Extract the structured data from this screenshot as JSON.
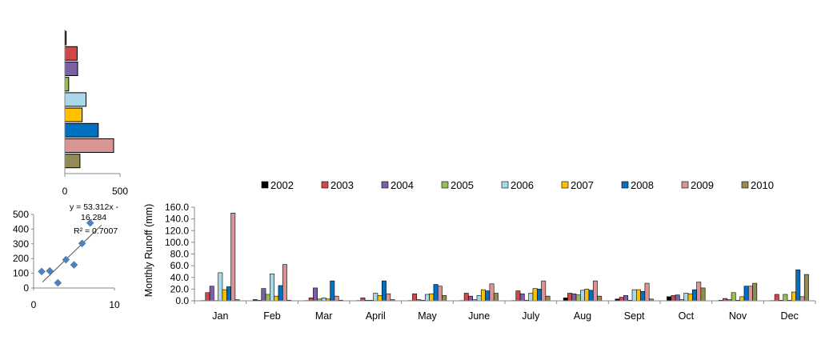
{
  "colors": {
    "2002": "#000000",
    "2003": "#d04848",
    "2004": "#7d5fa8",
    "2005": "#9bbb59",
    "2006": "#a9d8e8",
    "2007": "#ffc000",
    "2008": "#0070c0",
    "2009": "#d99594",
    "2010": "#948a54",
    "scatter_marker": "#4f81bd"
  },
  "chart_data": [
    {
      "type": "bar",
      "orientation": "horizontal",
      "categories": [
        "2002",
        "2003",
        "2004",
        "2005",
        "2006",
        "2007",
        "2008",
        "2009",
        "2010"
      ],
      "values": [
        12,
        112,
        116,
        35,
        192,
        157,
        303,
        442,
        137
      ],
      "xlim": [
        0,
        500
      ],
      "xticks": [
        "0",
        "500"
      ],
      "title": "",
      "xlabel": "",
      "ylabel": ""
    },
    {
      "type": "scatter",
      "x": [
        1,
        2,
        3,
        4,
        5,
        6,
        7
      ],
      "y": [
        112,
        116,
        35,
        192,
        157,
        303,
        442
      ],
      "xlim": [
        0,
        10
      ],
      "ylim": [
        0,
        500
      ],
      "xticks": [
        "0",
        "10"
      ],
      "yticks": [
        "0",
        "100",
        "200",
        "300",
        "400",
        "500"
      ],
      "trendline": true,
      "annotations": [
        "y = 53.312x -",
        "16.284",
        "R² = 0.7007"
      ],
      "title": "",
      "xlabel": "",
      "ylabel": ""
    },
    {
      "type": "bar",
      "title": "",
      "ylabel": "Monthly  Runoff (mm)",
      "xlabel": "",
      "ylim": [
        0,
        160
      ],
      "yticks": [
        "0.0",
        "20.0",
        "40.0",
        "60.0",
        "80.0",
        "100.0",
        "120.0",
        "140.0",
        "160.0"
      ],
      "legend": "top",
      "grid": false,
      "categories": [
        "Jan",
        "Feb",
        "Mar",
        "April",
        "May",
        "June",
        "July",
        "Aug",
        "Sept",
        "Oct",
        "Nov",
        "Dec"
      ],
      "series": [
        {
          "name": "2002",
          "values": [
            0.5,
            2,
            0.5,
            0.5,
            0.5,
            0.5,
            0.5,
            5,
            3,
            7,
            1,
            0.5
          ]
        },
        {
          "name": "2003",
          "values": [
            14,
            1,
            5,
            5,
            12,
            13,
            17,
            13,
            6,
            9,
            4,
            11
          ]
        },
        {
          "name": "2004",
          "values": [
            25,
            21,
            22,
            1,
            2,
            8,
            12,
            12,
            9,
            10,
            2,
            1
          ]
        },
        {
          "name": "2005",
          "values": [
            0.5,
            11,
            3,
            1,
            1,
            2,
            1,
            10,
            1,
            2,
            14,
            11
          ]
        },
        {
          "name": "2006",
          "values": [
            48,
            46,
            5,
            13,
            11,
            9,
            13,
            18,
            19,
            13,
            1,
            1
          ]
        },
        {
          "name": "2007",
          "values": [
            19,
            8,
            3,
            9,
            12,
            19,
            21,
            20,
            19,
            12,
            7,
            15
          ]
        },
        {
          "name": "2008",
          "values": [
            24,
            26,
            34,
            34,
            28,
            17,
            20,
            18,
            16,
            19,
            25,
            53
          ]
        },
        {
          "name": "2009",
          "values": [
            150,
            62,
            8,
            12,
            25,
            29,
            34,
            34,
            30,
            32,
            25,
            7
          ]
        },
        {
          "name": "2010",
          "values": [
            2,
            1,
            1,
            2,
            9,
            13,
            8,
            8,
            3,
            22,
            30,
            45
          ]
        }
      ]
    }
  ]
}
